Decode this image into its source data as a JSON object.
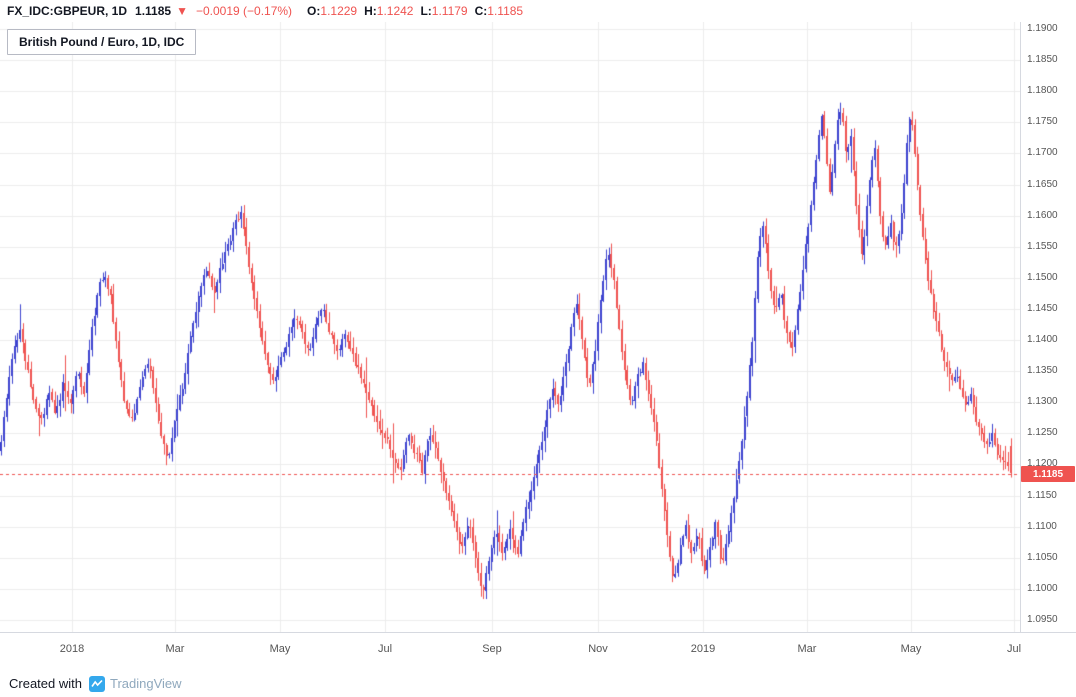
{
  "topbar": {
    "symbol": "FX_IDC:GBPEUR, 1D",
    "last": "1.1185",
    "arrow": "▼",
    "change": "−0.0019 (−0.17%)",
    "o_label": "O:",
    "o": "1.1229",
    "h_label": "H:",
    "h": "1.1242",
    "l_label": "L:",
    "l": "1.1179",
    "c_label": "C:",
    "c": "1.1185"
  },
  "legend": {
    "title": "British Pound / Euro, 1D, IDC"
  },
  "footer": {
    "created_with": "Created with",
    "brand": "TradingView"
  },
  "colors": {
    "up": "#3d43cf",
    "down": "#ef5350",
    "grid": "#ececec",
    "axis_text": "#555555",
    "last_line": "#ef5350",
    "tag_text": "#ffffff"
  },
  "chart_data": {
    "type": "candlestick",
    "title": "British Pound / Euro, 1D, IDC",
    "symbol": "GBPEUR",
    "timeframe": "1D",
    "last_price": 1.1185,
    "last_price_label": "1.1185",
    "ohlc": {
      "open": 1.1229,
      "high": 1.1242,
      "low": 1.1179,
      "close": 1.1185
    },
    "candle_count": 380,
    "y_axis": {
      "min": 1.095,
      "max": 1.19,
      "step": 0.005,
      "ticks": [
        "1.1900",
        "1.1850",
        "1.1800",
        "1.1750",
        "1.1700",
        "1.1650",
        "1.1600",
        "1.1550",
        "1.1500",
        "1.1450",
        "1.1400",
        "1.1350",
        "1.1300",
        "1.1250",
        "1.1200",
        "1.1150",
        "1.1100",
        "1.1050",
        "1.1000",
        "1.0950"
      ]
    },
    "x_axis": {
      "ticks": [
        {
          "label": "2018",
          "f": 0.0706
        },
        {
          "label": "Mar",
          "f": 0.1716
        },
        {
          "label": "May",
          "f": 0.2745
        },
        {
          "label": "Jul",
          "f": 0.3775
        },
        {
          "label": "Sep",
          "f": 0.4824
        },
        {
          "label": "Nov",
          "f": 0.5863
        },
        {
          "label": "2019",
          "f": 0.6892
        },
        {
          "label": "Mar",
          "f": 0.7912
        },
        {
          "label": "May",
          "f": 0.8931
        },
        {
          "label": "Jul",
          "f": 0.9941
        }
      ]
    },
    "anchors": [
      [
        0.0,
        1.124
      ],
      [
        0.006,
        1.132
      ],
      [
        0.012,
        1.138
      ],
      [
        0.018,
        1.142
      ],
      [
        0.025,
        1.136
      ],
      [
        0.032,
        1.13
      ],
      [
        0.04,
        1.127
      ],
      [
        0.047,
        1.132
      ],
      [
        0.054,
        1.128
      ],
      [
        0.061,
        1.133
      ],
      [
        0.068,
        1.13
      ],
      [
        0.075,
        1.135
      ],
      [
        0.082,
        1.131
      ],
      [
        0.089,
        1.141
      ],
      [
        0.096,
        1.148
      ],
      [
        0.102,
        1.151
      ],
      [
        0.108,
        1.147
      ],
      [
        0.115,
        1.138
      ],
      [
        0.122,
        1.13
      ],
      [
        0.13,
        1.127
      ],
      [
        0.138,
        1.133
      ],
      [
        0.146,
        1.137
      ],
      [
        0.152,
        1.131
      ],
      [
        0.158,
        1.125
      ],
      [
        0.165,
        1.12
      ],
      [
        0.172,
        1.127
      ],
      [
        0.18,
        1.133
      ],
      [
        0.188,
        1.141
      ],
      [
        0.196,
        1.148
      ],
      [
        0.204,
        1.152
      ],
      [
        0.21,
        1.147
      ],
      [
        0.216,
        1.151
      ],
      [
        0.224,
        1.155
      ],
      [
        0.232,
        1.159
      ],
      [
        0.238,
        1.1605
      ],
      [
        0.244,
        1.153
      ],
      [
        0.25,
        1.147
      ],
      [
        0.256,
        1.142
      ],
      [
        0.263,
        1.136
      ],
      [
        0.27,
        1.133
      ],
      [
        0.277,
        1.137
      ],
      [
        0.284,
        1.14
      ],
      [
        0.291,
        1.144
      ],
      [
        0.298,
        1.141
      ],
      [
        0.305,
        1.138
      ],
      [
        0.312,
        1.143
      ],
      [
        0.319,
        1.145
      ],
      [
        0.326,
        1.141
      ],
      [
        0.333,
        1.138
      ],
      [
        0.34,
        1.141
      ],
      [
        0.347,
        1.138
      ],
      [
        0.354,
        1.135
      ],
      [
        0.361,
        1.132
      ],
      [
        0.368,
        1.129
      ],
      [
        0.375,
        1.126
      ],
      [
        0.382,
        1.124
      ],
      [
        0.389,
        1.121
      ],
      [
        0.396,
        1.119
      ],
      [
        0.403,
        1.125
      ],
      [
        0.41,
        1.122
      ],
      [
        0.417,
        1.119
      ],
      [
        0.424,
        1.125
      ],
      [
        0.431,
        1.122
      ],
      [
        0.438,
        1.117
      ],
      [
        0.445,
        1.113
      ],
      [
        0.451,
        1.109
      ],
      [
        0.457,
        1.106
      ],
      [
        0.463,
        1.111
      ],
      [
        0.47,
        1.104
      ],
      [
        0.477,
        1.0995
      ],
      [
        0.483,
        1.105
      ],
      [
        0.49,
        1.109
      ],
      [
        0.497,
        1.105
      ],
      [
        0.504,
        1.11
      ],
      [
        0.511,
        1.105
      ],
      [
        0.518,
        1.112
      ],
      [
        0.525,
        1.116
      ],
      [
        0.532,
        1.121
      ],
      [
        0.539,
        1.127
      ],
      [
        0.546,
        1.132
      ],
      [
        0.552,
        1.129
      ],
      [
        0.558,
        1.135
      ],
      [
        0.564,
        1.141
      ],
      [
        0.57,
        1.146
      ],
      [
        0.576,
        1.139
      ],
      [
        0.582,
        1.132
      ],
      [
        0.588,
        1.138
      ],
      [
        0.594,
        1.147
      ],
      [
        0.6,
        1.154
      ],
      [
        0.606,
        1.151
      ],
      [
        0.612,
        1.142
      ],
      [
        0.618,
        1.134
      ],
      [
        0.624,
        1.13
      ],
      [
        0.63,
        1.134
      ],
      [
        0.636,
        1.136
      ],
      [
        0.642,
        1.131
      ],
      [
        0.648,
        1.125
      ],
      [
        0.654,
        1.117
      ],
      [
        0.66,
        1.108
      ],
      [
        0.666,
        1.101
      ],
      [
        0.672,
        1.106
      ],
      [
        0.678,
        1.11
      ],
      [
        0.684,
        1.105
      ],
      [
        0.69,
        1.109
      ],
      [
        0.696,
        1.103
      ],
      [
        0.702,
        1.107
      ],
      [
        0.708,
        1.111
      ],
      [
        0.714,
        1.103
      ],
      [
        0.72,
        1.109
      ],
      [
        0.726,
        1.115
      ],
      [
        0.732,
        1.122
      ],
      [
        0.738,
        1.13
      ],
      [
        0.744,
        1.14
      ],
      [
        0.75,
        1.155
      ],
      [
        0.755,
        1.159
      ],
      [
        0.76,
        1.151
      ],
      [
        0.766,
        1.144
      ],
      [
        0.772,
        1.148
      ],
      [
        0.778,
        1.141
      ],
      [
        0.784,
        1.139
      ],
      [
        0.79,
        1.146
      ],
      [
        0.796,
        1.154
      ],
      [
        0.802,
        1.162
      ],
      [
        0.808,
        1.17
      ],
      [
        0.813,
        1.176
      ],
      [
        0.817,
        1.17
      ],
      [
        0.821,
        1.163
      ],
      [
        0.825,
        1.17
      ],
      [
        0.829,
        1.176
      ],
      [
        0.833,
        1.177
      ],
      [
        0.837,
        1.169
      ],
      [
        0.841,
        1.174
      ],
      [
        0.845,
        1.166
      ],
      [
        0.849,
        1.158
      ],
      [
        0.853,
        1.153
      ],
      [
        0.857,
        1.161
      ],
      [
        0.861,
        1.167
      ],
      [
        0.865,
        1.172
      ],
      [
        0.869,
        1.163
      ],
      [
        0.873,
        1.157
      ],
      [
        0.877,
        1.155
      ],
      [
        0.881,
        1.159
      ],
      [
        0.885,
        1.154
      ],
      [
        0.889,
        1.157
      ],
      [
        0.893,
        1.162
      ],
      [
        0.897,
        1.171
      ],
      [
        0.901,
        1.177
      ],
      [
        0.905,
        1.17
      ],
      [
        0.909,
        1.162
      ],
      [
        0.913,
        1.156
      ],
      [
        0.917,
        1.151
      ],
      [
        0.921,
        1.147
      ],
      [
        0.926,
        1.143
      ],
      [
        0.931,
        1.139
      ],
      [
        0.936,
        1.136
      ],
      [
        0.941,
        1.133
      ],
      [
        0.946,
        1.135
      ],
      [
        0.951,
        1.132
      ],
      [
        0.956,
        1.129
      ],
      [
        0.961,
        1.131
      ],
      [
        0.966,
        1.127
      ],
      [
        0.971,
        1.125
      ],
      [
        0.976,
        1.123
      ],
      [
        0.981,
        1.125
      ],
      [
        0.986,
        1.122
      ],
      [
        0.991,
        1.12
      ],
      [
        0.996,
        1.121
      ],
      [
        1.0,
        1.1185
      ]
    ]
  }
}
